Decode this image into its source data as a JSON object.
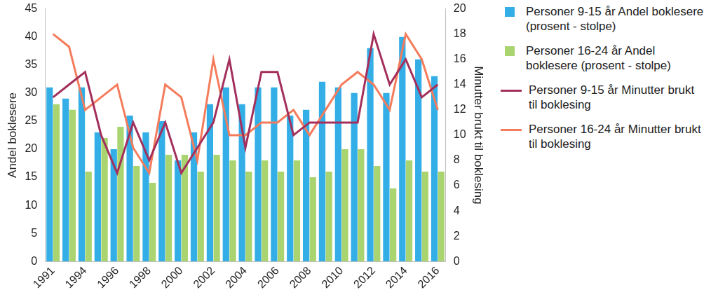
{
  "chart_data": {
    "type": "bar",
    "categories": [
      "1991",
      null,
      "1994",
      null,
      "1996",
      null,
      "1998",
      null,
      "2000",
      null,
      "2002",
      null,
      "2004",
      null,
      "2006",
      null,
      "2008",
      null,
      "2010",
      null,
      "2012",
      null,
      "2014",
      null,
      "2016"
    ],
    "y_label": "Andel boklesere",
    "y2_label": "Minutter brukt til boklesing",
    "ylim": [
      0,
      45
    ],
    "yticks": [
      0,
      5,
      10,
      15,
      20,
      25,
      30,
      35,
      40,
      45
    ],
    "y2lim": [
      0,
      20
    ],
    "y2ticks": [
      0,
      2,
      4,
      6,
      8,
      10,
      12,
      14,
      16,
      18,
      20
    ],
    "grid": false,
    "legend": "right",
    "series": [
      {
        "name": "Personer 9-15 år Andel boklesere (prosent - stolpe)",
        "type": "bar",
        "color": "#33aee6",
        "values": [
          31,
          29,
          31,
          23,
          20,
          26,
          23,
          25,
          18,
          23,
          28,
          31,
          28,
          31,
          31,
          26,
          27,
          32,
          31,
          30,
          38,
          30,
          40,
          36,
          33
        ]
      },
      {
        "name": "Personer 16-24 år Andel boklesere (prosent - stolpe)",
        "type": "bar",
        "color": "#a9d46f",
        "values": [
          28,
          27,
          16,
          22,
          24,
          17,
          14,
          19,
          19,
          16,
          19,
          18,
          16,
          18,
          16,
          18,
          15,
          16,
          20,
          20,
          17,
          13,
          18,
          16,
          16
        ]
      },
      {
        "name": "Personer 9-15 år Minutter brukt til boklesing",
        "type": "line",
        "axis": "y2",
        "color": "#a3305c",
        "values": [
          13,
          14,
          15,
          10,
          7,
          11,
          8,
          11,
          7,
          9,
          11,
          16,
          9,
          15,
          15,
          10,
          11,
          11,
          11,
          11,
          18,
          14,
          16,
          13,
          14
        ]
      },
      {
        "name": "Personer 16-24 år Minutter brukt til boklesing",
        "type": "line",
        "axis": "y2",
        "color": "#f47c5c",
        "values": [
          18,
          17,
          12,
          13,
          14,
          9,
          7,
          14,
          13,
          8,
          16,
          10,
          10,
          11,
          11,
          12,
          10,
          12,
          14,
          15,
          14,
          12,
          18,
          16,
          12
        ]
      }
    ]
  }
}
